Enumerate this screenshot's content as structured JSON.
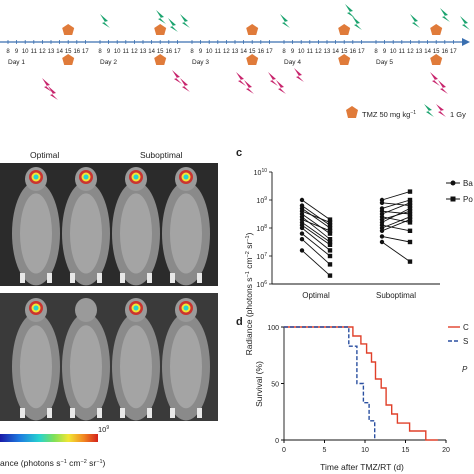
{
  "schedule": {
    "days": [
      "Day 1",
      "Day 2",
      "Day 3",
      "Day 4",
      "Day 5"
    ],
    "hours": [
      "8",
      "9",
      "10",
      "11",
      "12",
      "13",
      "14",
      "15",
      "16",
      "17"
    ],
    "colors": {
      "axis": "#3a6fb0",
      "tmz": "#e07b3a",
      "green": "#1aa36e",
      "pink": "#c8246c"
    },
    "legend": {
      "tmz_label": "TMZ 50 mg kg",
      "tmz_exp": "−1",
      "rt_label": "1 Gy"
    }
  },
  "imaging": {
    "label_optimal": "Optimal",
    "label_suboptimal": "Suboptimal",
    "colorbar_max": "10",
    "colorbar_max_exp": "9",
    "colorbar_label": "ance (photons s",
    "colorbar_label_tail": "cm",
    "colorbar_label_tail2": "sr"
  },
  "panel_c": {
    "letter": "c",
    "type": "scatter",
    "ylabel": "Radiance (photons s",
    "ylabel_tail": "cm",
    "ylabel_tail2": "sr",
    "groups": [
      "Optimal",
      "Suboptimal"
    ],
    "yticks": [
      6,
      7,
      8,
      9,
      10
    ],
    "tick_base": "10",
    "legend": [
      "Ba",
      "Po"
    ],
    "optimal_pairs": [
      [
        9.0,
        8.3
      ],
      [
        8.8,
        8.1
      ],
      [
        8.7,
        8.0
      ],
      [
        8.6,
        8.2
      ],
      [
        8.5,
        7.8
      ],
      [
        8.4,
        7.6
      ],
      [
        8.3,
        7.9
      ],
      [
        8.2,
        7.5
      ],
      [
        8.1,
        7.4
      ],
      [
        8.0,
        7.2
      ],
      [
        7.8,
        7.0
      ],
      [
        7.6,
        6.7
      ],
      [
        7.2,
        6.3
      ]
    ],
    "suboptimal_pairs": [
      [
        9.0,
        9.3
      ],
      [
        8.9,
        8.8
      ],
      [
        8.7,
        9.0
      ],
      [
        8.6,
        8.5
      ],
      [
        8.5,
        8.9
      ],
      [
        8.4,
        8.2
      ],
      [
        8.3,
        8.6
      ],
      [
        8.2,
        8.7
      ],
      [
        8.1,
        7.9
      ],
      [
        8.0,
        8.4
      ],
      [
        7.9,
        8.3
      ],
      [
        7.7,
        7.5
      ],
      [
        7.5,
        6.8
      ]
    ]
  },
  "panel_d": {
    "letter": "d",
    "type": "line",
    "ylabel": "Survival (%)",
    "xlabel": "Time after TMZ/RT (d)",
    "xticks": [
      0,
      5,
      10,
      15,
      20
    ],
    "yticks": [
      0,
      50,
      100
    ],
    "legend": [
      "C",
      "S"
    ],
    "p_label": "P",
    "colors": {
      "red": "#e0402a",
      "blue": "#2a4fa0"
    },
    "red_steps": [
      [
        0,
        100
      ],
      [
        8.5,
        100
      ],
      [
        8.5,
        92
      ],
      [
        9.5,
        92
      ],
      [
        9.5,
        85
      ],
      [
        10.2,
        85
      ],
      [
        10.2,
        77
      ],
      [
        10.8,
        77
      ],
      [
        10.8,
        69
      ],
      [
        11.3,
        69
      ],
      [
        11.3,
        54
      ],
      [
        12,
        54
      ],
      [
        12,
        46
      ],
      [
        12.6,
        46
      ],
      [
        12.6,
        31
      ],
      [
        13.3,
        31
      ],
      [
        13.3,
        23
      ],
      [
        14,
        23
      ],
      [
        14,
        15
      ],
      [
        15.5,
        15
      ],
      [
        15.5,
        8
      ],
      [
        17.5,
        8
      ],
      [
        17.5,
        0
      ],
      [
        19,
        0
      ]
    ],
    "blue_steps": [
      [
        0,
        100
      ],
      [
        8.0,
        100
      ],
      [
        8.0,
        83
      ],
      [
        9.0,
        83
      ],
      [
        9.0,
        50
      ],
      [
        9.8,
        50
      ],
      [
        9.8,
        33
      ],
      [
        10.5,
        33
      ],
      [
        10.5,
        17
      ],
      [
        11.2,
        17
      ],
      [
        11.2,
        0
      ]
    ]
  }
}
